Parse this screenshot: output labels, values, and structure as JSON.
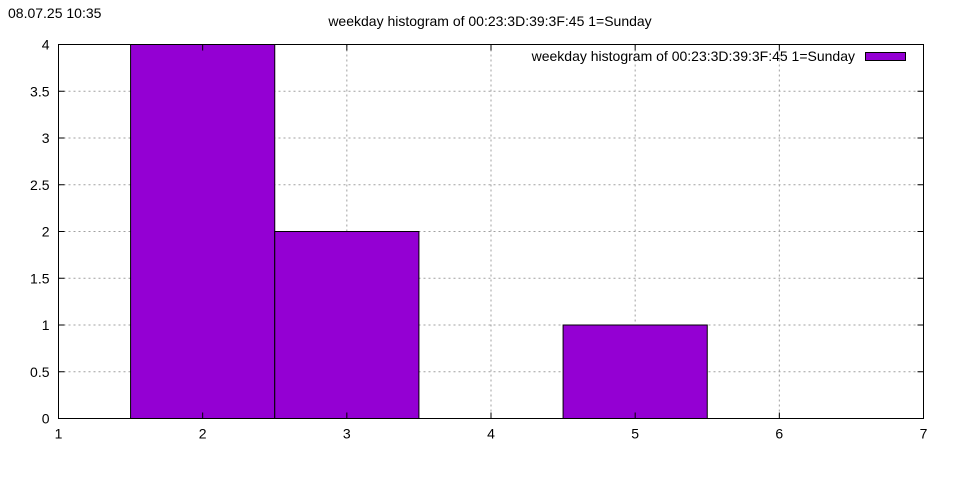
{
  "timestamp": "08.07.25 10:35",
  "chart_data": {
    "type": "bar",
    "title": "weekday histogram of 00:23:3D:39:3F:45 1=Sunday",
    "xlabel": "",
    "ylabel": "",
    "xlim": [
      1,
      7
    ],
    "ylim": [
      0,
      4
    ],
    "x_ticks": [
      "1",
      "2",
      "3",
      "4",
      "5",
      "6",
      "7"
    ],
    "y_ticks": [
      "0",
      "0.5",
      "1",
      "1.5",
      "2",
      "2.5",
      "3",
      "3.5",
      "4"
    ],
    "grid": true,
    "legend_position": "top-right",
    "bar_color": "#9400d3",
    "series": [
      {
        "name": "weekday histogram of 00:23:3D:39:3F:45 1=Sunday",
        "x": [
          2,
          3,
          5
        ],
        "values": [
          4,
          2,
          1
        ]
      }
    ]
  }
}
